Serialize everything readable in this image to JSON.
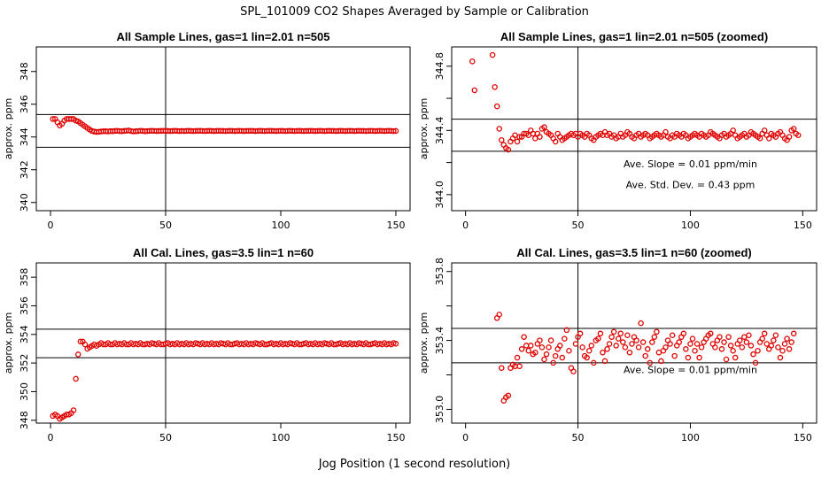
{
  "figure": {
    "title": "SPL_101009  CO2 Shapes Averaged by Sample or Calibration",
    "xlabel": "Jog Position (1 second resolution)"
  },
  "colors": {
    "points": "#e00000",
    "axes": "#000000",
    "background": "#ffffff"
  },
  "chart_data": [
    {
      "type": "scatter",
      "title": "All Sample Lines, gas=1 lin=2.01 n=505",
      "ylabel": "approx. ppm",
      "xlim": [
        0,
        150
      ],
      "ylim": [
        339.5,
        349.5
      ],
      "xticks": [
        "0",
        "50",
        "100",
        "150"
      ],
      "yticks": [
        340,
        342,
        344,
        346,
        348
      ],
      "vline": 50,
      "hlines": [
        345.37,
        343.37
      ],
      "series": [
        {
          "x_start": 1,
          "x_step": 1,
          "y": [
            345.1,
            345.1,
            344.9,
            344.7,
            344.8,
            345.0,
            345.1,
            345.1,
            345.1,
            345.1,
            345.0,
            344.95,
            344.85,
            344.75,
            344.65,
            344.55,
            344.45,
            344.37,
            344.33,
            344.31,
            344.32,
            344.34,
            344.35,
            344.35,
            344.34,
            344.36,
            344.35,
            344.37,
            344.38,
            344.36,
            344.35,
            344.37,
            344.38,
            344.4,
            344.36,
            344.34,
            344.35,
            344.36,
            344.38,
            344.37,
            344.35,
            344.36,
            344.37,
            344.38,
            344.37,
            344.36,
            344.37,
            344.37,
            344.38,
            344.37,
            344.37,
            344.36,
            344.37,
            344.38,
            344.37,
            344.36,
            344.37,
            344.36,
            344.37,
            344.38,
            344.37,
            344.36,
            344.37,
            344.37,
            344.38,
            344.37,
            344.36,
            344.37,
            344.38,
            344.37,
            344.36,
            344.37,
            344.38,
            344.37,
            344.37,
            344.36,
            344.37,
            344.38,
            344.37,
            344.36,
            344.37,
            344.38,
            344.37,
            344.36,
            344.37,
            344.37,
            344.38,
            344.37,
            344.36,
            344.37,
            344.38,
            344.37,
            344.36,
            344.37,
            344.38,
            344.37,
            344.37,
            344.36,
            344.37,
            344.38,
            344.37,
            344.36,
            344.37,
            344.38,
            344.37,
            344.36,
            344.37,
            344.38,
            344.37,
            344.36,
            344.37,
            344.37,
            344.38,
            344.37,
            344.36,
            344.37,
            344.38,
            344.37,
            344.36,
            344.37,
            344.38,
            344.37,
            344.37,
            344.36,
            344.37,
            344.38,
            344.37,
            344.36,
            344.37,
            344.38,
            344.37,
            344.36,
            344.37,
            344.38,
            344.37,
            344.37,
            344.36,
            344.37,
            344.38,
            344.37,
            344.36,
            344.37,
            344.38,
            344.37,
            344.36,
            344.37,
            344.38,
            344.37,
            344.36,
            344.37,
            344.38,
            344.37
          ]
        }
      ],
      "annotations": []
    },
    {
      "type": "scatter",
      "title": "All Sample Lines, gas=1 lin=2.01 n=505 (zoomed)",
      "ylabel": "approx. ppm",
      "xlim": [
        0,
        150
      ],
      "ylim": [
        343.9,
        344.92
      ],
      "xticks": [
        "0",
        "50",
        "100",
        "150"
      ],
      "yticks": [
        344.0,
        344.4,
        344.8
      ],
      "yticks_minor": [
        344.2,
        344.6
      ],
      "vline": 50,
      "hlines": [
        344.47,
        344.27
      ],
      "series": [
        {
          "x_start": 3,
          "x_step": 1,
          "y": [
            344.83,
            344.65,
            null,
            null,
            null,
            null,
            null,
            null,
            null,
            344.87,
            344.67,
            344.55,
            344.41,
            344.34,
            344.31,
            344.29,
            344.28,
            344.33,
            344.35,
            344.37,
            344.33,
            344.36,
            344.36,
            344.38,
            344.38,
            344.37,
            344.4,
            344.38,
            344.35,
            344.38,
            344.36,
            344.41,
            344.42,
            344.39,
            344.38,
            344.37,
            344.35,
            344.33,
            344.38,
            344.36,
            344.34,
            344.35,
            344.36,
            344.37,
            344.38,
            344.37,
            344.38,
            344.36,
            344.38,
            344.37,
            344.36,
            344.38,
            344.37,
            344.35,
            344.34,
            344.36,
            344.37,
            344.38,
            344.37,
            344.39,
            344.37,
            344.38,
            344.36,
            344.37,
            344.35,
            344.36,
            344.38,
            344.36,
            344.37,
            344.39,
            344.38,
            344.36,
            344.35,
            344.37,
            344.38,
            344.36,
            344.37,
            344.38,
            344.37,
            344.35,
            344.36,
            344.37,
            344.38,
            344.37,
            344.36,
            344.37,
            344.39,
            344.36,
            344.35,
            344.37,
            344.36,
            344.38,
            344.37,
            344.36,
            344.38,
            344.37,
            344.35,
            344.36,
            344.37,
            344.38,
            344.37,
            344.36,
            344.38,
            344.37,
            344.36,
            344.37,
            344.39,
            344.38,
            344.37,
            344.36,
            344.35,
            344.37,
            344.38,
            344.36,
            344.37,
            344.38,
            344.4,
            344.37,
            344.35,
            344.36,
            344.37,
            344.38,
            344.36,
            344.37,
            344.39,
            344.38,
            344.37,
            344.36,
            344.35,
            344.38,
            344.4,
            344.37,
            344.35,
            344.38,
            344.37,
            344.36,
            344.38,
            344.39,
            344.37,
            344.35,
            344.34,
            344.36,
            344.4,
            344.41,
            344.38,
            344.37
          ]
        }
      ],
      "annotations": [
        {
          "text": "Ave. Slope =  0.01  ppm/min",
          "x": 100,
          "y": 344.17
        },
        {
          "text": "Ave. Std. Dev. =  0.43  ppm",
          "x": 100,
          "y": 344.04
        }
      ]
    },
    {
      "type": "scatter",
      "title": "All Cal. Lines, gas=3.5 lin=1 n=60",
      "ylabel": "approx. ppm",
      "xlim": [
        0,
        150
      ],
      "ylim": [
        347.8,
        359.0
      ],
      "xticks": [
        "0",
        "50",
        "100",
        "150"
      ],
      "yticks": [
        348,
        350,
        352,
        354,
        356,
        358
      ],
      "vline": 50,
      "hlines": [
        354.37,
        352.37
      ],
      "series": [
        {
          "x_start": 1,
          "x_step": 1,
          "y": [
            348.3,
            348.4,
            348.3,
            348.1,
            348.2,
            348.3,
            348.4,
            348.4,
            348.5,
            348.7,
            350.9,
            352.6,
            353.5,
            353.5,
            353.3,
            353.0,
            353.1,
            353.2,
            353.3,
            353.2,
            353.3,
            353.4,
            353.3,
            353.3,
            353.4,
            353.3,
            353.3,
            353.4,
            353.3,
            353.35,
            353.3,
            353.4,
            353.3,
            353.3,
            353.4,
            353.3,
            353.35,
            353.3,
            353.4,
            353.3,
            353.3,
            353.35,
            353.3,
            353.4,
            353.35,
            353.3,
            353.4,
            353.3,
            353.3,
            353.35,
            353.4,
            353.3,
            353.35,
            353.3,
            353.4,
            353.3,
            353.35,
            353.3,
            353.4,
            353.3,
            353.35,
            353.3,
            353.4,
            353.35,
            353.3,
            353.4,
            353.3,
            353.35,
            353.3,
            353.4,
            353.3,
            353.35,
            353.3,
            353.4,
            353.35,
            353.3,
            353.4,
            353.3,
            353.3,
            353.35,
            353.4,
            353.3,
            353.35,
            353.3,
            353.4,
            353.3,
            353.35,
            353.3,
            353.4,
            353.35,
            353.3,
            353.4,
            353.3,
            353.3,
            353.35,
            353.4,
            353.3,
            353.35,
            353.3,
            353.4,
            353.3,
            353.35,
            353.3,
            353.4,
            353.35,
            353.3,
            353.4,
            353.3,
            353.3,
            353.35,
            353.4,
            353.3,
            353.35,
            353.3,
            353.4,
            353.3,
            353.35,
            353.3,
            353.4,
            353.35,
            353.3,
            353.4,
            353.3,
            353.3,
            353.35,
            353.4,
            353.3,
            353.35,
            353.3,
            353.4,
            353.3,
            353.35,
            353.3,
            353.4,
            353.35,
            353.3,
            353.4,
            353.3,
            353.3,
            353.35,
            353.4,
            353.3,
            353.35,
            353.3,
            353.4,
            353.3,
            353.35,
            353.3,
            353.4,
            353.35
          ]
        }
      ],
      "annotations": []
    },
    {
      "type": "scatter",
      "title": "All Cal. Lines, gas=3.5 lin=1 n=60 (zoomed)",
      "ylabel": "approx. ppm",
      "xlim": [
        0,
        150
      ],
      "ylim": [
        352.92,
        353.85
      ],
      "xticks": [
        "0",
        "50",
        "100",
        "150"
      ],
      "yticks": [
        353.0,
        353.4,
        353.8
      ],
      "yticks_minor": [
        353.2,
        353.6
      ],
      "vline": 50,
      "hlines": [
        353.47,
        353.27
      ],
      "series": [
        {
          "x_start": 14,
          "x_step": 1,
          "y": [
            353.53,
            353.55,
            353.24,
            353.05,
            353.07,
            353.08,
            353.24,
            353.26,
            353.25,
            353.3,
            353.25,
            353.35,
            353.42,
            353.37,
            353.34,
            353.37,
            353.32,
            353.33,
            353.38,
            353.4,
            353.36,
            353.29,
            353.32,
            353.36,
            353.4,
            353.27,
            353.31,
            353.35,
            353.37,
            353.3,
            353.41,
            353.46,
            353.34,
            353.24,
            353.22,
            353.38,
            353.42,
            353.44,
            353.36,
            353.31,
            353.3,
            353.34,
            353.37,
            353.27,
            353.4,
            353.41,
            353.44,
            353.33,
            353.28,
            353.35,
            353.38,
            353.42,
            353.45,
            353.37,
            353.41,
            353.44,
            353.39,
            353.36,
            353.43,
            353.33,
            353.38,
            353.42,
            353.4,
            353.36,
            353.5,
            353.39,
            353.31,
            353.35,
            353.27,
            353.39,
            353.42,
            353.45,
            353.33,
            353.28,
            353.34,
            353.36,
            353.4,
            353.38,
            353.43,
            353.31,
            353.37,
            353.39,
            353.42,
            353.44,
            353.35,
            353.3,
            353.38,
            353.41,
            353.34,
            353.38,
            353.3,
            353.36,
            353.39,
            353.41,
            353.43,
            353.44,
            353.38,
            353.36,
            353.4,
            353.42,
            353.35,
            353.39,
            353.29,
            353.42,
            353.37,
            353.34,
            353.3,
            353.38,
            353.4,
            353.36,
            353.42,
            353.39,
            353.43,
            353.37,
            353.32,
            353.27,
            353.34,
            353.39,
            353.41,
            353.44,
            353.38,
            353.35,
            353.37,
            353.4,
            353.43,
            353.36,
            353.3,
            353.34,
            353.38,
            353.41,
            353.35,
            353.39,
            353.44
          ]
        }
      ],
      "annotations": [
        {
          "text": "Ave. Slope =  0.01  ppm/min",
          "x": 100,
          "y": 353.21
        }
      ]
    }
  ]
}
